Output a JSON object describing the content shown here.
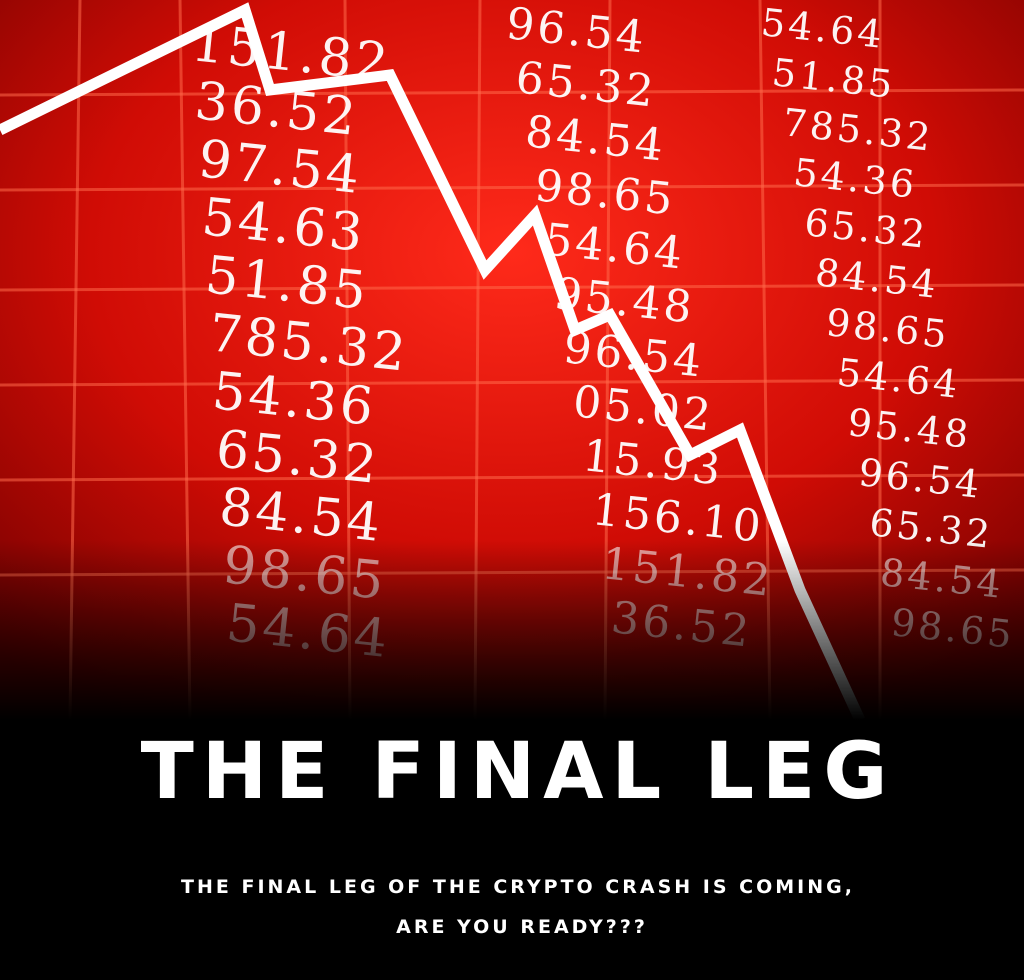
{
  "background": {
    "columns": [
      [
        "151.82",
        "36.52",
        "97.54",
        "54.63",
        "51.85",
        "785.32",
        "54.36",
        "65.32",
        "84.54",
        "98.65",
        "54.64"
      ],
      [
        "96.54",
        "65.32",
        "84.54",
        "98.65",
        "54.64",
        "95.48",
        "96.54",
        "05.02",
        "15.93",
        "156.10",
        "151.82",
        "36.52"
      ],
      [
        "54.64",
        "51.85",
        "785.32",
        "54.36",
        "65.32",
        "84.54",
        "98.65",
        "54.64",
        "95.48",
        "96.54",
        "65.32",
        "84.54",
        "98.65"
      ]
    ]
  },
  "title": "THE FINAL LEG",
  "subtitle": [
    "THE FINAL LEG OF THE CRYPTO CRASH IS COMING,",
    "ARE YOU READY???"
  ]
}
